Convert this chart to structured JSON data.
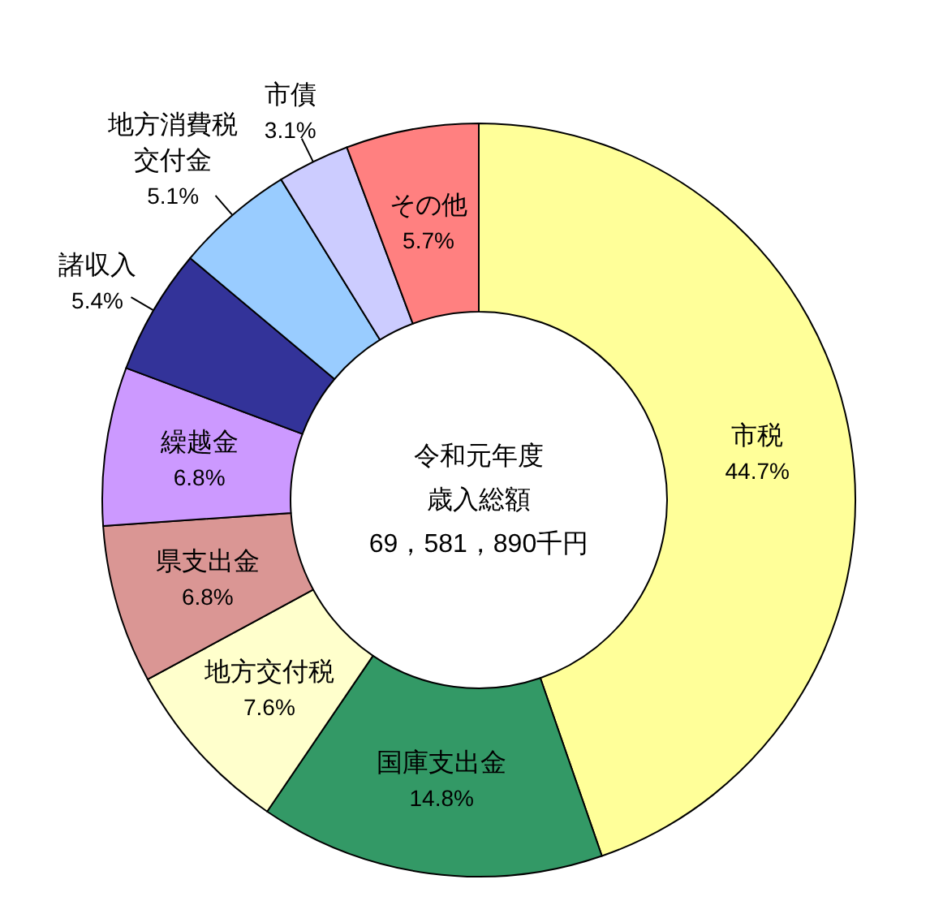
{
  "chart_data": {
    "type": "donut",
    "title": "令和元年度歳入総額",
    "subtitle": "69，581，890千円",
    "categories": [
      "市税",
      "国庫支出金",
      "地方交付税",
      "県支出金",
      "繰越金",
      "諸収入",
      "地方消費税交付金",
      "市債",
      "その他"
    ],
    "values": [
      44.7,
      14.8,
      7.6,
      6.8,
      6.8,
      5.4,
      5.1,
      3.1,
      5.7
    ],
    "value_labels": [
      "44.7%",
      "14.8%",
      "7.6%",
      "6.8%",
      "6.8%",
      "5.4%",
      "5.1%",
      "3.1%",
      "5.7%"
    ],
    "colors": [
      "#ffff99",
      "#339966",
      "#ffffcc",
      "#da9694",
      "#cc99ff",
      "#333399",
      "#99ccff",
      "#ccccff",
      "#ff8080"
    ]
  }
}
